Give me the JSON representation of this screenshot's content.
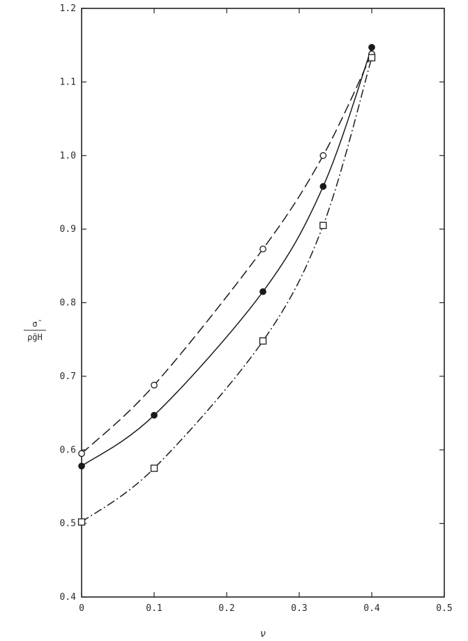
{
  "chart_data": {
    "type": "line",
    "xlabel": "ν",
    "ylabel": "σ̄ / ρ̄gH",
    "xlim": [
      0,
      0.5
    ],
    "ylim": [
      0.4,
      1.2
    ],
    "x_ticks": [
      "0",
      "0.1",
      "0.2",
      "0.3",
      "0.4",
      "0.5"
    ],
    "y_ticks": [
      "0.4",
      "0.5",
      "0.6",
      "0.7",
      "0.8",
      "0.9",
      "1.0",
      "1.1",
      "1.2"
    ],
    "grid": false,
    "legend": "none",
    "series": [
      {
        "marker": "open-circle",
        "line_style": "dashed",
        "x": [
          0,
          0.1,
          0.25,
          0.333,
          0.4
        ],
        "y": [
          0.595,
          0.688,
          0.873,
          1.0,
          1.138
        ]
      },
      {
        "marker": "filled-circle",
        "line_style": "solid",
        "x": [
          0,
          0.1,
          0.25,
          0.333,
          0.4
        ],
        "y": [
          0.578,
          0.647,
          0.815,
          0.958,
          1.147
        ]
      },
      {
        "marker": "open-square",
        "line_style": "dash-dot",
        "x": [
          0,
          0.1,
          0.25,
          0.333,
          0.4
        ],
        "y": [
          0.502,
          0.575,
          0.748,
          0.905,
          1.133
        ]
      }
    ]
  }
}
